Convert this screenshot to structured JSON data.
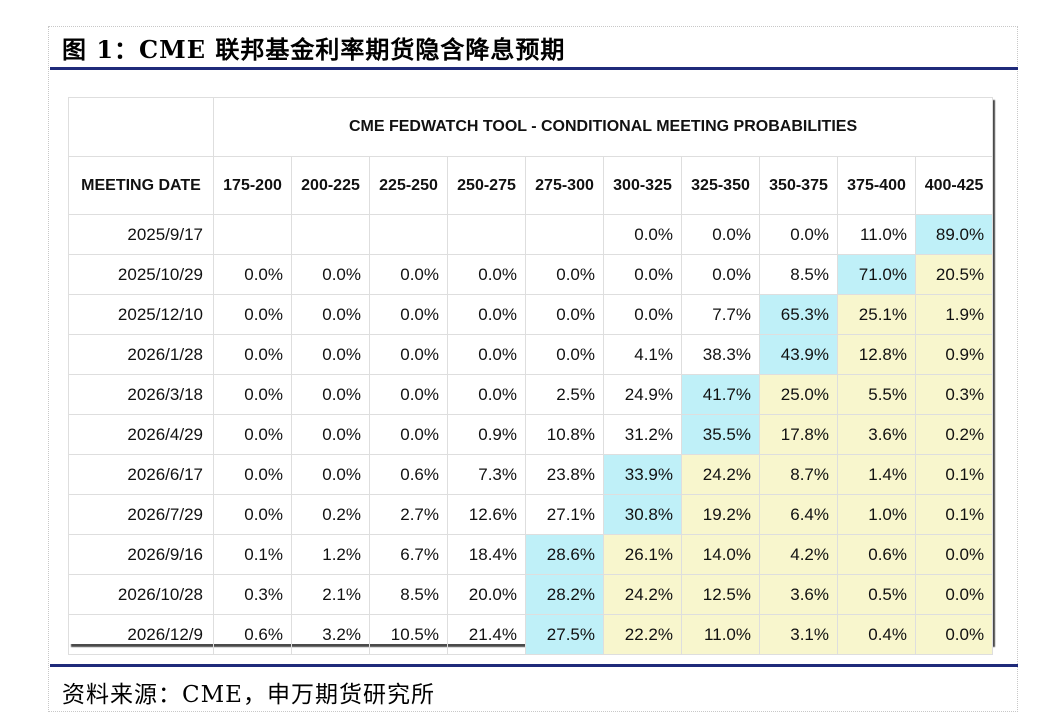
{
  "figure": {
    "title": "图 1：CME 联邦基金利率期货隐含降息预期",
    "source": "资料来源：CME，申万期货研究所"
  },
  "colors": {
    "highlight_max": "#bff0f8",
    "highlight_after": "#f8f6cd",
    "rule": "#1f2a7a"
  },
  "chart_data": {
    "type": "table",
    "title": "CME FEDWATCH TOOL - CONDITIONAL MEETING PROBABILITIES",
    "row_header": "MEETING DATE",
    "columns": [
      "175-200",
      "200-225",
      "225-250",
      "250-275",
      "275-300",
      "300-325",
      "325-350",
      "350-375",
      "375-400",
      "400-425"
    ],
    "rows": [
      {
        "date": "2025/9/17",
        "values": [
          "",
          "",
          "",
          "",
          "",
          "0.0%",
          "0.0%",
          "0.0%",
          "11.0%",
          "89.0%"
        ],
        "max_index": 9
      },
      {
        "date": "2025/10/29",
        "values": [
          "0.0%",
          "0.0%",
          "0.0%",
          "0.0%",
          "0.0%",
          "0.0%",
          "0.0%",
          "8.5%",
          "71.0%",
          "20.5%"
        ],
        "max_index": 8
      },
      {
        "date": "2025/12/10",
        "values": [
          "0.0%",
          "0.0%",
          "0.0%",
          "0.0%",
          "0.0%",
          "0.0%",
          "7.7%",
          "65.3%",
          "25.1%",
          "1.9%"
        ],
        "max_index": 7
      },
      {
        "date": "2026/1/28",
        "values": [
          "0.0%",
          "0.0%",
          "0.0%",
          "0.0%",
          "0.0%",
          "4.1%",
          "38.3%",
          "43.9%",
          "12.8%",
          "0.9%"
        ],
        "max_index": 7
      },
      {
        "date": "2026/3/18",
        "values": [
          "0.0%",
          "0.0%",
          "0.0%",
          "0.0%",
          "2.5%",
          "24.9%",
          "41.7%",
          "25.0%",
          "5.5%",
          "0.3%"
        ],
        "max_index": 6
      },
      {
        "date": "2026/4/29",
        "values": [
          "0.0%",
          "0.0%",
          "0.0%",
          "0.9%",
          "10.8%",
          "31.2%",
          "35.5%",
          "17.8%",
          "3.6%",
          "0.2%"
        ],
        "max_index": 6
      },
      {
        "date": "2026/6/17",
        "values": [
          "0.0%",
          "0.0%",
          "0.6%",
          "7.3%",
          "23.8%",
          "33.9%",
          "24.2%",
          "8.7%",
          "1.4%",
          "0.1%"
        ],
        "max_index": 5
      },
      {
        "date": "2026/7/29",
        "values": [
          "0.0%",
          "0.2%",
          "2.7%",
          "12.6%",
          "27.1%",
          "30.8%",
          "19.2%",
          "6.4%",
          "1.0%",
          "0.1%"
        ],
        "max_index": 5
      },
      {
        "date": "2026/9/16",
        "values": [
          "0.1%",
          "1.2%",
          "6.7%",
          "18.4%",
          "28.6%",
          "26.1%",
          "14.0%",
          "4.2%",
          "0.6%",
          "0.0%"
        ],
        "max_index": 4
      },
      {
        "date": "2026/10/28",
        "values": [
          "0.3%",
          "2.1%",
          "8.5%",
          "20.0%",
          "28.2%",
          "24.2%",
          "12.5%",
          "3.6%",
          "0.5%",
          "0.0%"
        ],
        "max_index": 4
      },
      {
        "date": "2026/12/9",
        "values": [
          "0.6%",
          "3.2%",
          "10.5%",
          "21.4%",
          "27.5%",
          "22.2%",
          "11.0%",
          "3.1%",
          "0.4%",
          "0.0%"
        ],
        "max_index": 4
      }
    ]
  }
}
